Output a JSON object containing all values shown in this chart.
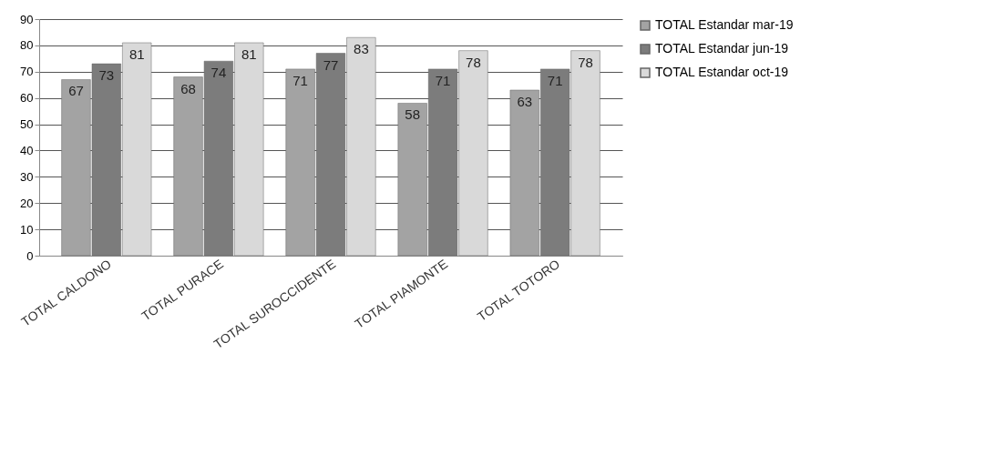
{
  "chart_data": {
    "type": "bar",
    "categories": [
      "TOTAL CALDONO",
      "TOTAL PURACE",
      "TOTAL SUROCCIDENTE",
      "TOTAL PIAMONTE",
      "TOTAL TOTORO"
    ],
    "series": [
      {
        "name": "TOTAL Estandar mar-19",
        "color": "#a3a3a3",
        "values": [
          67,
          68,
          71,
          58,
          63
        ]
      },
      {
        "name": "TOTAL Estandar jun-19",
        "color": "#7c7c7c",
        "values": [
          73,
          74,
          77,
          71,
          71
        ]
      },
      {
        "name": "TOTAL Estandar oct-19",
        "color": "#d9d9d9",
        "values": [
          81,
          81,
          83,
          78,
          78
        ]
      }
    ],
    "ylim": [
      0,
      90
    ],
    "yticks": [
      0,
      10,
      20,
      30,
      40,
      50,
      60,
      70,
      80,
      90
    ],
    "grid": "y",
    "legend": "right",
    "data_labels": true
  }
}
